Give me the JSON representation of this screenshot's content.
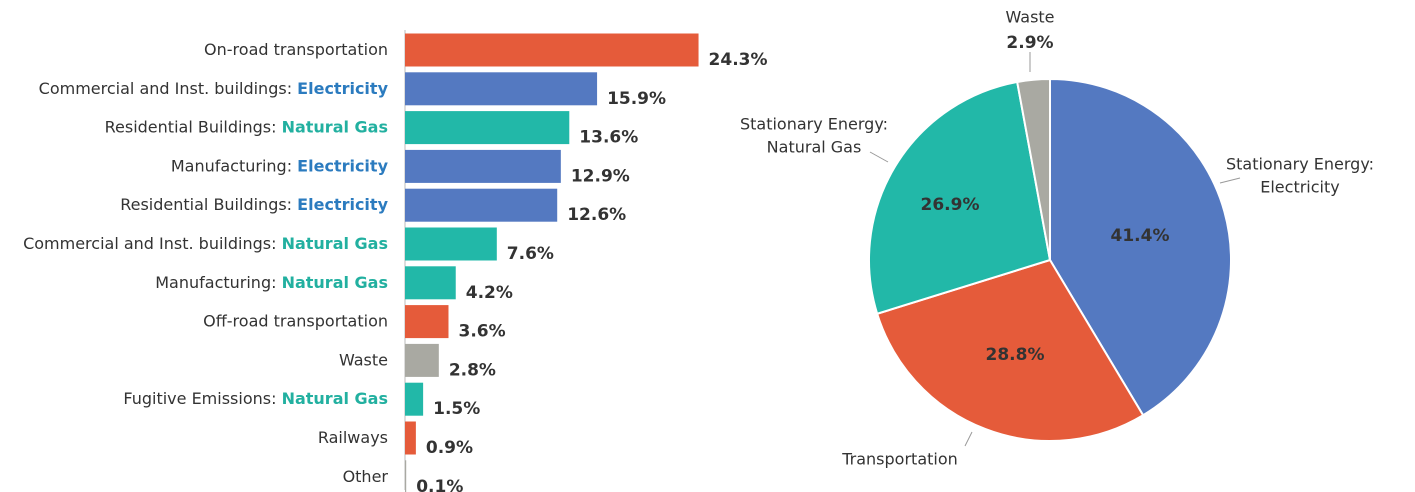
{
  "chart_data": [
    {
      "type": "bar",
      "orientation": "horizontal",
      "categories": [
        "On-road transportation",
        "Commercial and Inst. buildings:",
        "Residential Buildings:",
        "Manufacturing:",
        "Residential Buildings:",
        "Commercial and Inst. buildings:",
        "Manufacturing:",
        "Off-road transportation",
        "Waste",
        "Fugitive Emissions:",
        "Railways",
        "Other"
      ],
      "category_fuels": [
        null,
        "Electricity",
        "Natural Gas",
        "Electricity",
        "Electricity",
        "Natural Gas",
        "Natural Gas",
        null,
        null,
        "Natural Gas",
        null,
        null
      ],
      "fuel_colors": {
        "Electricity": "#2b7bbf",
        "Natural Gas": "#22b0a0"
      },
      "values": [
        24.3,
        15.9,
        13.6,
        12.9,
        12.6,
        7.6,
        4.2,
        3.6,
        2.8,
        1.5,
        0.9,
        0.1
      ],
      "value_labels": [
        "24.3%",
        "15.9%",
        "13.6%",
        "12.9%",
        "12.6%",
        "7.6%",
        "4.2%",
        "3.6%",
        "2.8%",
        "1.5%",
        "0.9%",
        "0.1%"
      ],
      "colors": [
        "#e55b3a",
        "#5479c1",
        "#22b8a8",
        "#5479c1",
        "#5479c1",
        "#22b8a8",
        "#22b8a8",
        "#e55b3a",
        "#a9a9a2",
        "#22b8a8",
        "#e55b3a",
        "#a9a9a2"
      ],
      "xlim": [
        0,
        25
      ]
    },
    {
      "type": "pie",
      "labels": [
        [
          "Stationary Energy:",
          "Electricity"
        ],
        [
          "Transportation"
        ],
        [
          "Stationary Energy:",
          "Natural Gas"
        ],
        [
          "Waste"
        ]
      ],
      "values": [
        41.4,
        28.8,
        26.9,
        2.9
      ],
      "value_labels": [
        "41.4%",
        "28.8%",
        "26.9%",
        "2.9%"
      ],
      "colors": [
        "#5479c1",
        "#e55b3a",
        "#22b8a8",
        "#a9a9a2"
      ]
    }
  ]
}
